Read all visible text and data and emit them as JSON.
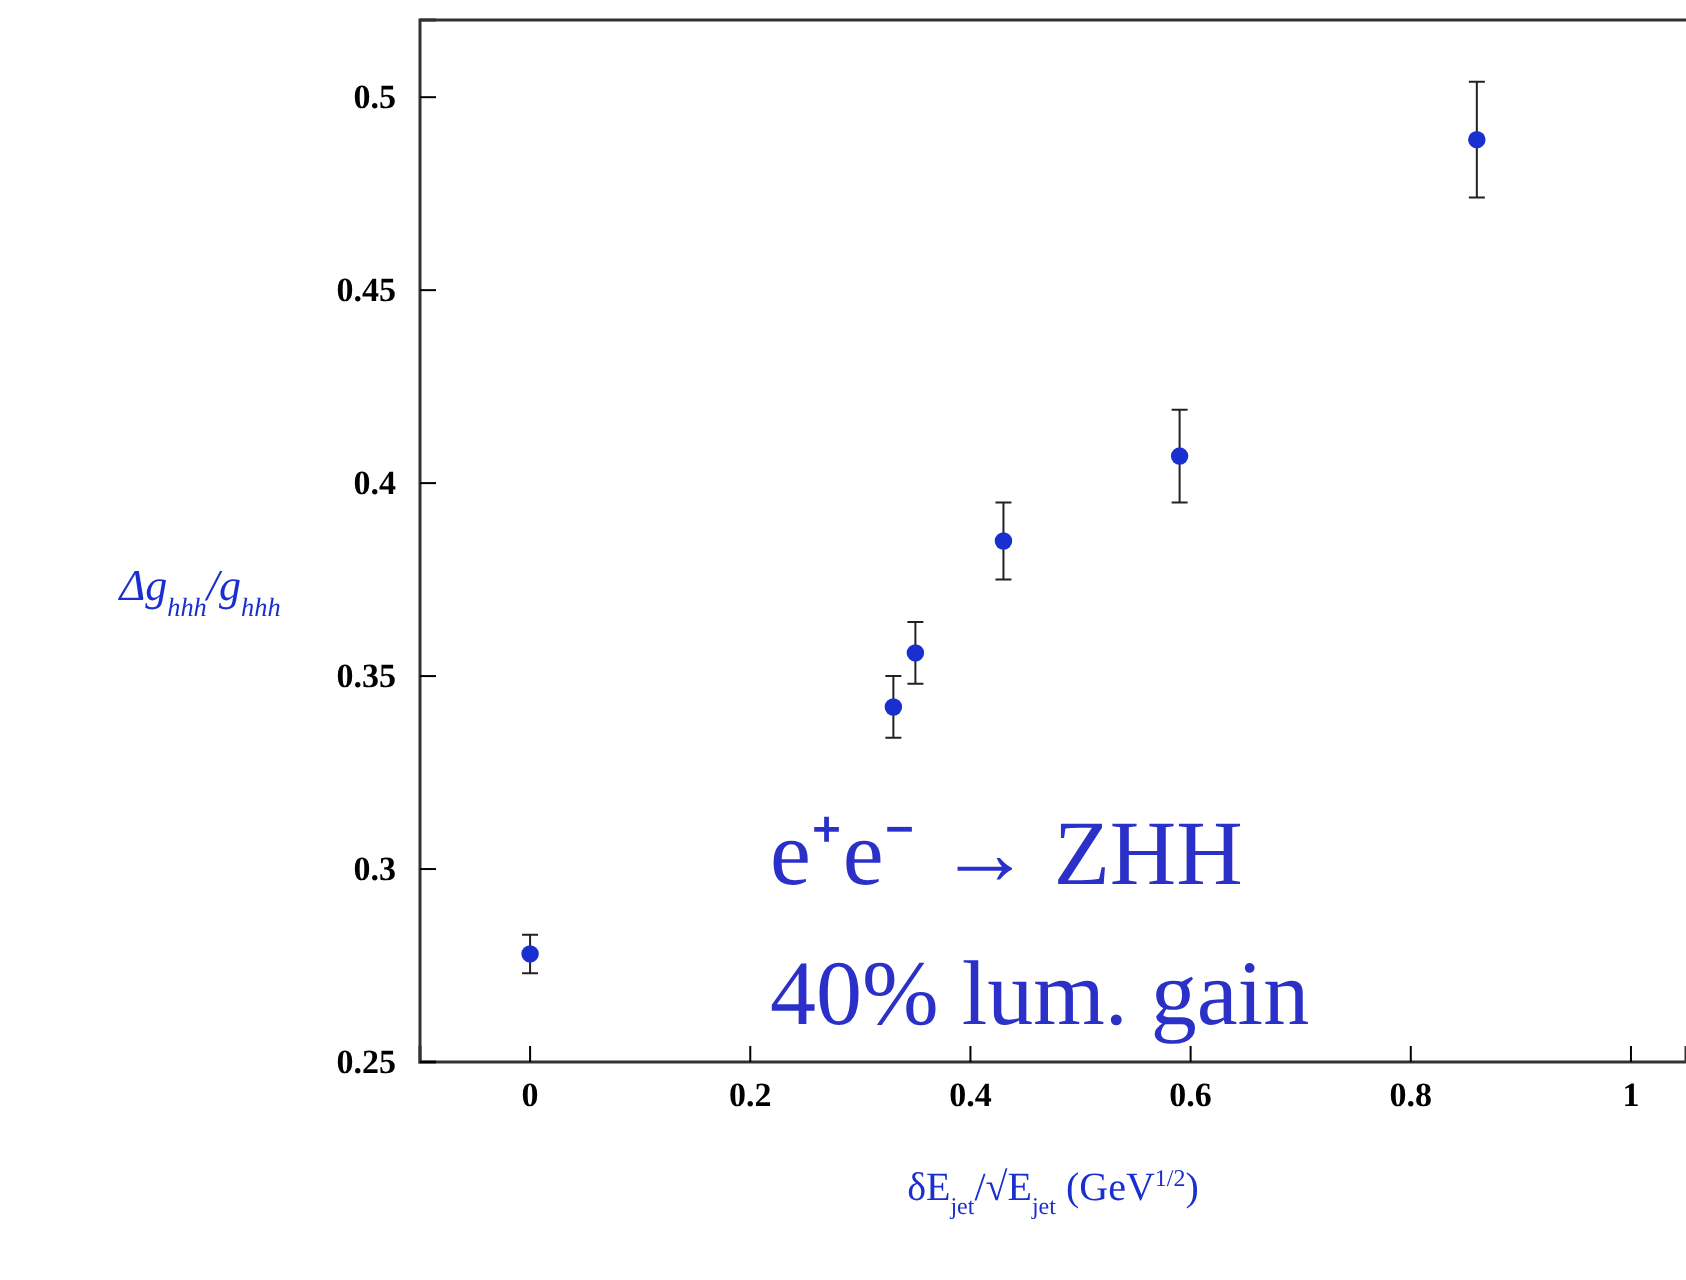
{
  "chart_data": {
    "type": "scatter",
    "xlabel": "δE$_{jet}$/√E$_{jet}$ (GeV$^{1/2}$)",
    "ylabel": "Δg$_{hhh}$/g$_{hhh}$",
    "x": [
      0,
      0.33,
      0.35,
      0.43,
      0.59,
      0.86
    ],
    "series": [
      {
        "color": "#1a2fd0",
        "values": [
          0.278,
          0.342,
          0.356,
          0.385,
          0.407,
          0.489
        ],
        "errors": [
          0.005,
          0.008,
          0.008,
          0.01,
          0.012,
          0.015
        ]
      }
    ],
    "xlim": [
      -0.1,
      1.05
    ],
    "ylim": [
      0.25,
      0.52
    ],
    "xticks": [
      0,
      0.2,
      0.4,
      0.6,
      0.8,
      1
    ],
    "yticks": [
      0.25,
      0.3,
      0.35,
      0.4,
      0.45,
      0.5
    ],
    "marker": "circle",
    "grid": false,
    "annotations": [
      "e⁺e⁻ → ZHH",
      "40% lum. gain"
    ]
  }
}
